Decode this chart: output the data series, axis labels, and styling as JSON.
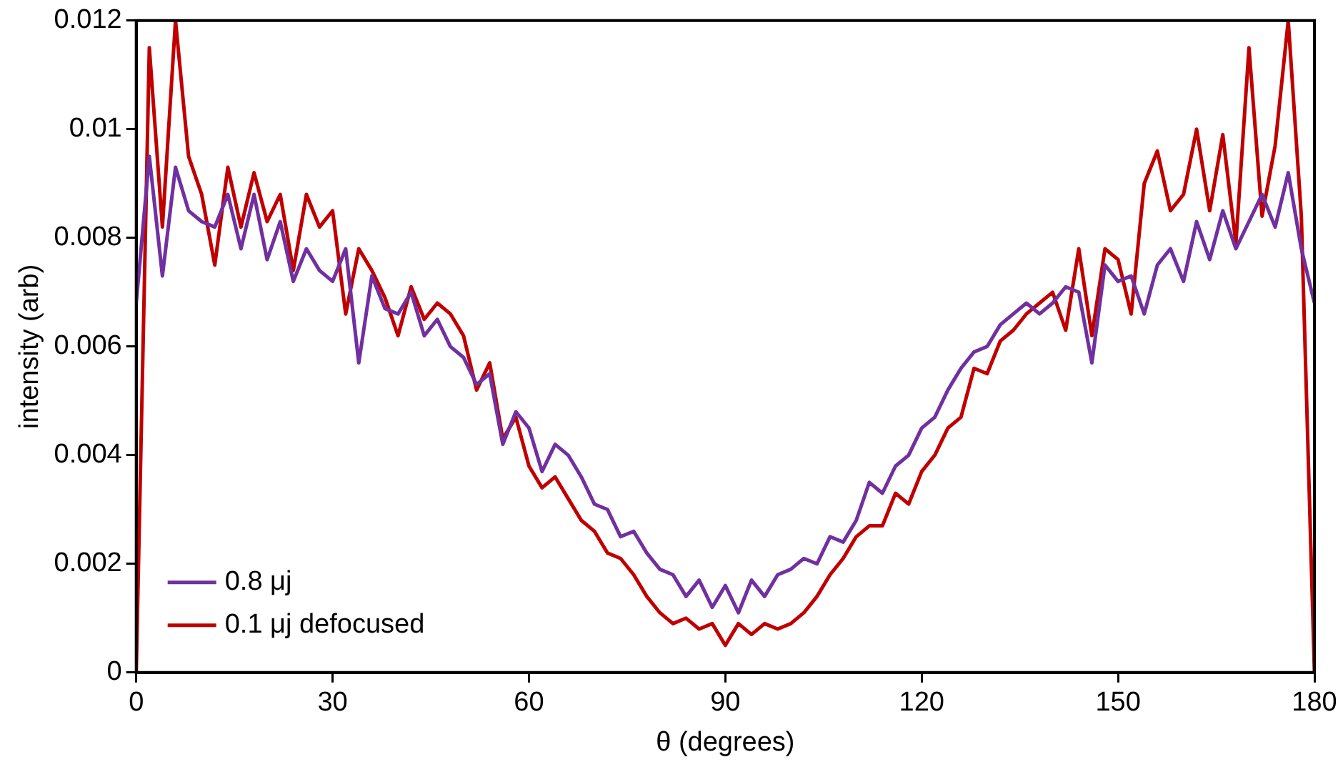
{
  "chart_data": {
    "type": "line",
    "xlabel": "θ (degrees)",
    "ylabel": "intensity (arb)",
    "x": [
      0,
      2,
      4,
      6,
      8,
      10,
      12,
      14,
      16,
      18,
      20,
      22,
      24,
      26,
      28,
      30,
      32,
      34,
      36,
      38,
      40,
      42,
      44,
      46,
      48,
      50,
      52,
      54,
      56,
      58,
      60,
      62,
      64,
      66,
      68,
      70,
      72,
      74,
      76,
      78,
      80,
      82,
      84,
      86,
      88,
      90,
      92,
      94,
      96,
      98,
      100,
      102,
      104,
      106,
      108,
      110,
      112,
      114,
      116,
      118,
      120,
      122,
      124,
      126,
      128,
      130,
      132,
      134,
      136,
      138,
      140,
      142,
      144,
      146,
      148,
      150,
      152,
      154,
      156,
      158,
      160,
      162,
      164,
      166,
      168,
      170,
      172,
      174,
      176,
      178,
      180
    ],
    "xlim": [
      0,
      180
    ],
    "xticks": [
      0,
      30,
      60,
      90,
      120,
      150,
      180
    ],
    "ylim": [
      0,
      0.012
    ],
    "yticks": [
      0,
      0.002,
      0.004,
      0.006,
      0.008,
      0.01,
      0.012
    ],
    "grid": false,
    "legend": "bottom left",
    "marker": "none",
    "line_style": "solid",
    "series": [
      {
        "name": "0.8 μj",
        "color": "#7030a0",
        "values": [
          0.0068,
          0.0095,
          0.0073,
          0.0093,
          0.0085,
          0.0083,
          0.0082,
          0.0088,
          0.0078,
          0.0088,
          0.0076,
          0.0083,
          0.0072,
          0.0078,
          0.0074,
          0.0072,
          0.0078,
          0.0057,
          0.0073,
          0.0067,
          0.0066,
          0.007,
          0.0062,
          0.0065,
          0.006,
          0.0058,
          0.0053,
          0.0055,
          0.0042,
          0.0048,
          0.0045,
          0.0037,
          0.0042,
          0.004,
          0.0036,
          0.0031,
          0.003,
          0.0025,
          0.0026,
          0.0022,
          0.0019,
          0.0018,
          0.0014,
          0.0017,
          0.0012,
          0.0016,
          0.0011,
          0.0017,
          0.0014,
          0.0018,
          0.0019,
          0.0021,
          0.002,
          0.0025,
          0.0024,
          0.0028,
          0.0035,
          0.0033,
          0.0038,
          0.004,
          0.0045,
          0.0047,
          0.0052,
          0.0056,
          0.0059,
          0.006,
          0.0064,
          0.0066,
          0.0068,
          0.0066,
          0.0068,
          0.0071,
          0.007,
          0.0057,
          0.0075,
          0.0072,
          0.0073,
          0.0066,
          0.0075,
          0.0078,
          0.0072,
          0.0083,
          0.0076,
          0.0085,
          0.0078,
          0.0083,
          0.0088,
          0.0082,
          0.0092,
          0.0078,
          0.0068
        ]
      },
      {
        "name": "0.1 μj defocused",
        "color": "#c00000",
        "values": [
          0,
          0.0115,
          0.0082,
          0.012,
          0.0095,
          0.0088,
          0.0075,
          0.0093,
          0.0082,
          0.0092,
          0.0083,
          0.0088,
          0.0074,
          0.0088,
          0.0082,
          0.0085,
          0.0066,
          0.0078,
          0.0074,
          0.0069,
          0.0062,
          0.0071,
          0.0065,
          0.0068,
          0.0066,
          0.0062,
          0.0052,
          0.0057,
          0.0043,
          0.0047,
          0.0038,
          0.0034,
          0.0036,
          0.0032,
          0.0028,
          0.0026,
          0.0022,
          0.0021,
          0.0018,
          0.0014,
          0.0011,
          0.0009,
          0.001,
          0.0008,
          0.0009,
          0.0005,
          0.0009,
          0.0007,
          0.0009,
          0.0008,
          0.0009,
          0.0011,
          0.0014,
          0.0018,
          0.0021,
          0.0025,
          0.0027,
          0.0027,
          0.0033,
          0.0031,
          0.0037,
          0.004,
          0.0045,
          0.0047,
          0.0056,
          0.0055,
          0.0061,
          0.0063,
          0.0066,
          0.0068,
          0.007,
          0.0063,
          0.0078,
          0.0062,
          0.0078,
          0.0076,
          0.0066,
          0.009,
          0.0096,
          0.0085,
          0.0088,
          0.01,
          0.0085,
          0.0099,
          0.0079,
          0.0115,
          0.0084,
          0.0097,
          0.012,
          0.0084,
          0
        ]
      }
    ]
  }
}
